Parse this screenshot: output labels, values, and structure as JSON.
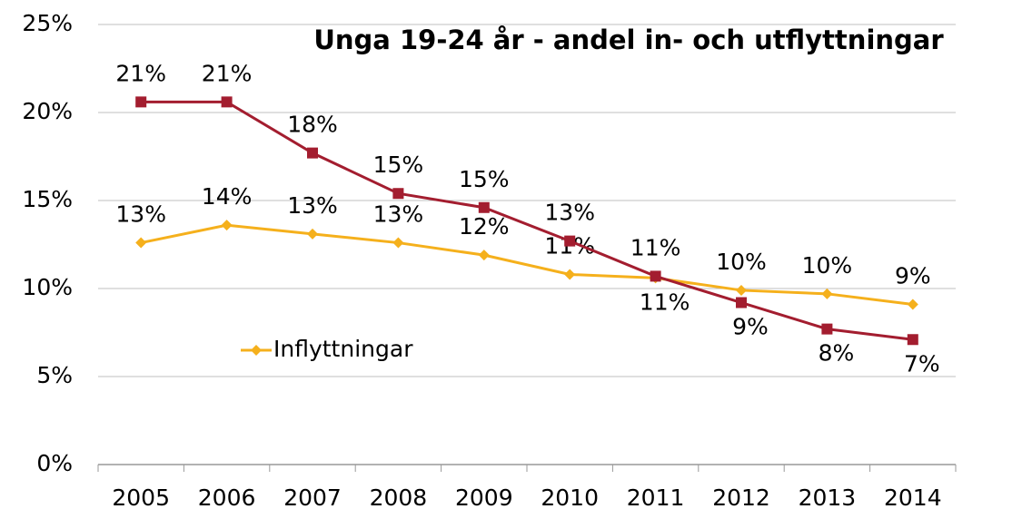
{
  "chart_data": {
    "type": "line",
    "title": "Unga 19-24 år - andel in- och utflyttningar",
    "categories": [
      "2005",
      "2006",
      "2007",
      "2008",
      "2009",
      "2010",
      "2011",
      "2012",
      "2013",
      "2014"
    ],
    "series": [
      {
        "color": "#a31d2f",
        "marker": "square",
        "values": [
          20.6,
          20.6,
          17.7,
          15.4,
          14.6,
          12.7,
          10.7,
          9.2,
          7.7,
          7.1
        ],
        "value_labels": [
          "21%",
          "21%",
          "18%",
          "15%",
          "15%",
          "13%",
          "11%",
          "9%",
          "8%",
          "7%"
        ]
      },
      {
        "name": "Inflyttningar",
        "color": "#f5b01c",
        "marker": "diamond",
        "values": [
          12.6,
          13.6,
          13.1,
          12.6,
          11.9,
          10.8,
          10.6,
          9.9,
          9.7,
          9.1
        ],
        "value_labels": [
          "13%",
          "14%",
          "13%",
          "13%",
          "12%",
          "11%",
          "11%",
          "10%",
          "10%",
          "9%"
        ]
      }
    ],
    "ylim": [
      0,
      25
    ],
    "yticks": [
      {
        "value": 0,
        "label": "0%"
      },
      {
        "value": 5,
        "label": "5%"
      },
      {
        "value": 10,
        "label": "10%"
      },
      {
        "value": 15,
        "label": "15%"
      },
      {
        "value": 20,
        "label": "20%"
      },
      {
        "value": 25,
        "label": "25%"
      }
    ],
    "grid": true,
    "legend": "lower left"
  }
}
